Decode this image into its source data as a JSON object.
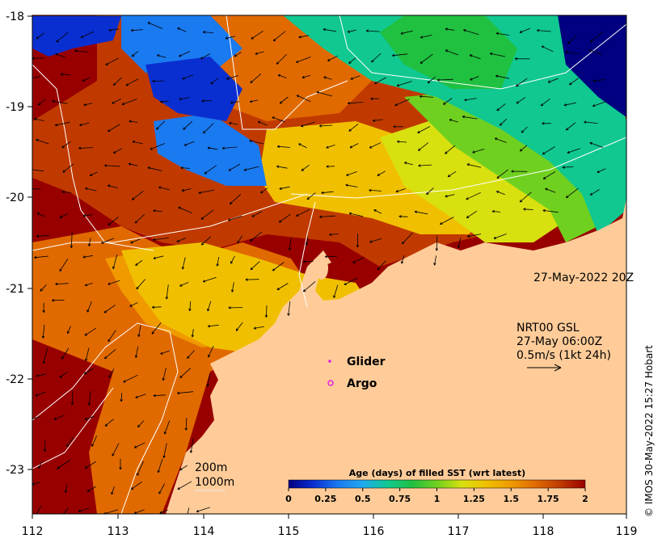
{
  "x_ticks": [
    "112",
    "113",
    "114",
    "115",
    "116",
    "117",
    "118",
    "119"
  ],
  "y_ticks": [
    "-18",
    "-19",
    "-20",
    "-21",
    "-22",
    "-23"
  ],
  "timestamp": "27-May-2022 20Z",
  "current_source": {
    "product": "NRT00 GSL",
    "time": "27-May 06:00Z",
    "scale": "0.5m/s (1kt 24h)"
  },
  "legend": {
    "glider": "Glider",
    "argo": "Argo",
    "glider_color": "#e020e0",
    "argo_color": "#e020e0"
  },
  "isobaths": {
    "shallow": "200m",
    "deep": "1000m"
  },
  "colorbar": {
    "title": "Age (days) of filled SST (wrt latest)",
    "ticks": [
      "0",
      "0.25",
      "0.5",
      "0.75",
      "1",
      "1.25",
      "1.5",
      "1.75",
      "2"
    ],
    "colors": [
      "#000080",
      "#0a2fd0",
      "#1a7af0",
      "#20a8f0",
      "#10c890",
      "#20c040",
      "#70d020",
      "#d8e010",
      "#f0c000",
      "#f09a00",
      "#e06a00",
      "#c03a00",
      "#980000"
    ]
  },
  "credit": "© IMOS 30-May-2022 15:27 Hobart",
  "colors": {
    "land": "#ffcc99",
    "frame": "#000000"
  }
}
